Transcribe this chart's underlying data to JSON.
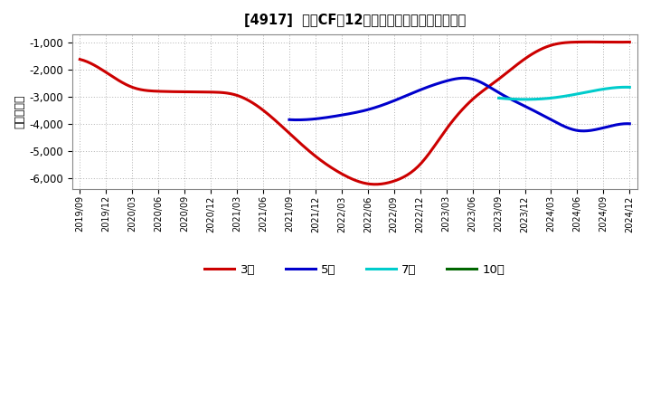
{
  "title": "[4917]  投賄CFだ12か月移動合計の平均値の推移",
  "ylabel": "（百万円）",
  "ylim": [
    -6400,
    -700
  ],
  "yticks": [
    -6000,
    -5000,
    -4000,
    -3000,
    -2000,
    -1000
  ],
  "background_color": "#ffffff",
  "grid_color": "#b0b0b0",
  "series": {
    "3year": {
      "color": "#cc0000",
      "label": "3年",
      "x": [
        "2019/09",
        "2019/12",
        "2020/03",
        "2020/06",
        "2020/09",
        "2020/12",
        "2021/03",
        "2021/06",
        "2021/09",
        "2021/12",
        "2022/03",
        "2022/06",
        "2022/09",
        "2022/12",
        "2023/03",
        "2023/06",
        "2023/09",
        "2023/12",
        "2024/03",
        "2024/06",
        "2024/09",
        "2024/12"
      ],
      "y": [
        -1620,
        -2100,
        -2650,
        -2800,
        -2820,
        -2830,
        -2950,
        -3500,
        -4350,
        -5200,
        -5850,
        -6220,
        -6120,
        -5500,
        -4200,
        -3100,
        -2350,
        -1600,
        -1100,
        -980,
        -980,
        -980
      ]
    },
    "5year": {
      "color": "#0000cc",
      "label": "5年",
      "x": [
        "2021/09",
        "2021/12",
        "2022/03",
        "2022/06",
        "2022/09",
        "2022/12",
        "2023/03",
        "2023/06",
        "2023/09",
        "2023/12",
        "2024/03",
        "2024/06",
        "2024/09",
        "2024/12"
      ],
      "y": [
        -3850,
        -3820,
        -3680,
        -3480,
        -3150,
        -2750,
        -2420,
        -2350,
        -2850,
        -3350,
        -3850,
        -4250,
        -4150,
        -4000
      ]
    },
    "7year": {
      "color": "#00cccc",
      "label": "7年",
      "x": [
        "2023/09",
        "2023/12",
        "2024/03",
        "2024/06",
        "2024/09",
        "2024/12"
      ],
      "y": [
        -3050,
        -3100,
        -3050,
        -2900,
        -2720,
        -2650
      ]
    },
    "10year": {
      "color": "#006600",
      "label": "10年",
      "x": [],
      "y": []
    }
  },
  "xtick_labels": [
    "2019/09",
    "2019/12",
    "2020/03",
    "2020/06",
    "2020/09",
    "2020/12",
    "2021/03",
    "2021/06",
    "2021/09",
    "2021/12",
    "2022/03",
    "2022/06",
    "2022/09",
    "2022/12",
    "2023/03",
    "2023/06",
    "2023/09",
    "2023/12",
    "2024/03",
    "2024/06",
    "2024/09",
    "2024/12"
  ]
}
